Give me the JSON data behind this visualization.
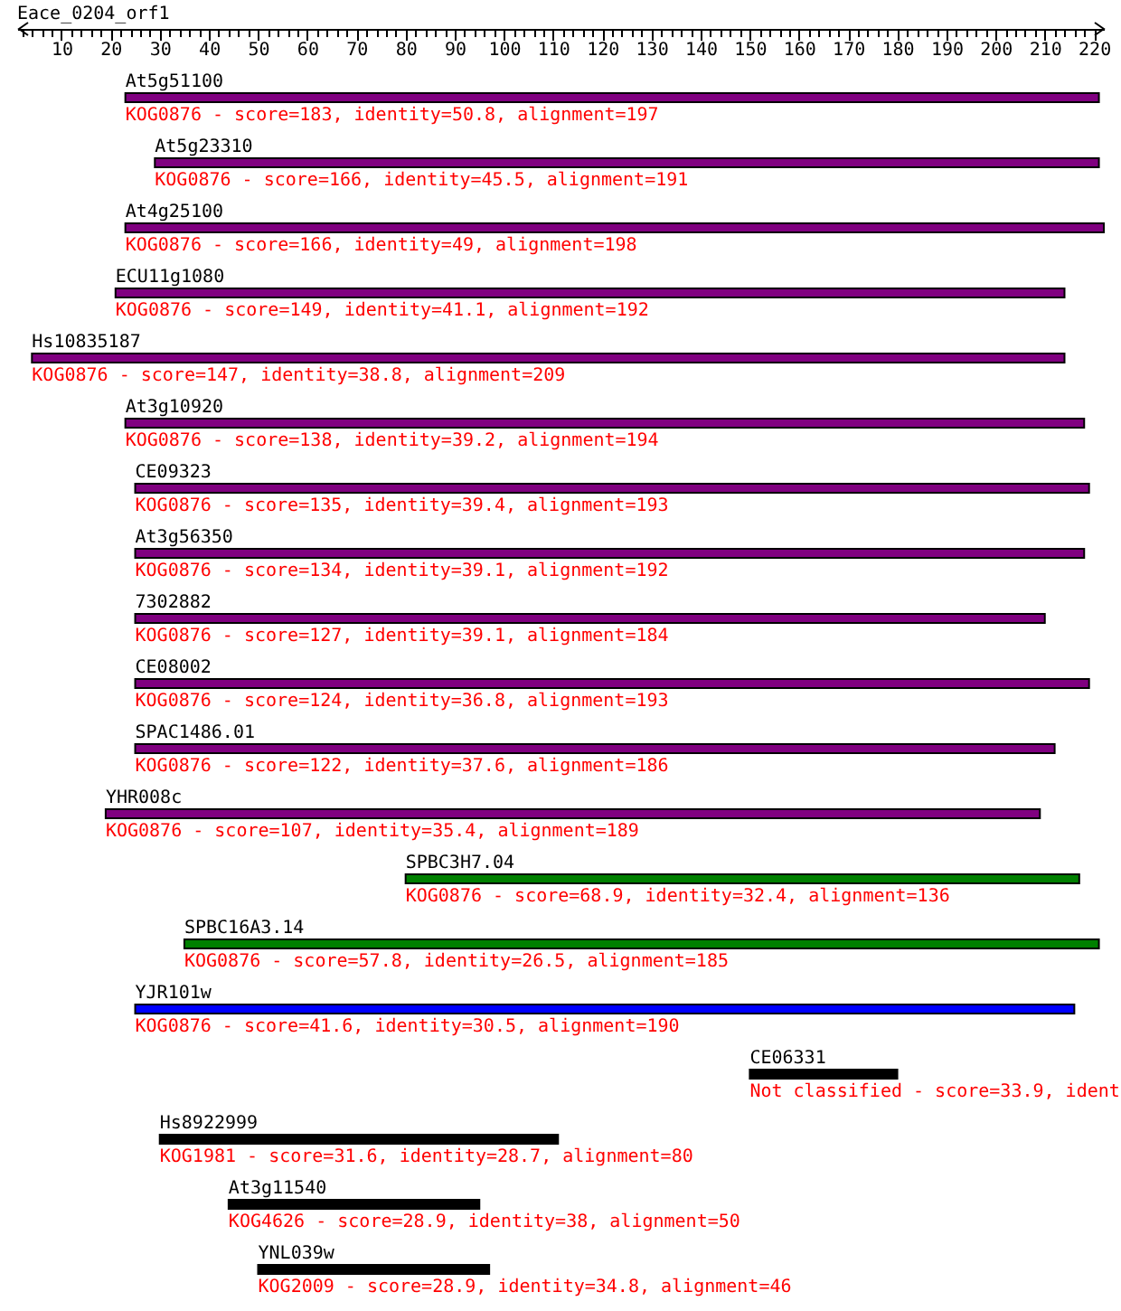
{
  "chart_data": {
    "type": "bar",
    "orientation": "horizontal",
    "title": "Eace_0204_orf1",
    "categories": [
      "At5g51100",
      "At5g23310",
      "At4g25100",
      "ECU11g1080",
      "Hs10835187",
      "At3g10920",
      "CE09323",
      "At3g56350",
      "7302882",
      "CE08002",
      "SPAC1486.01",
      "YHR008c",
      "SPBC3H7.04",
      "SPBC16A3.14",
      "YJR101w",
      "CE06331",
      "Hs8922999",
      "At3g11540",
      "YNL039w"
    ],
    "base": [
      23,
      29,
      23,
      21,
      4,
      23,
      25,
      25,
      25,
      25,
      25,
      19,
      80,
      35,
      25,
      150,
      30,
      44,
      50
    ],
    "values": [
      198,
      192,
      199,
      193,
      210,
      195,
      194,
      193,
      185,
      194,
      187,
      190,
      137,
      186,
      191,
      30,
      81,
      51,
      47
    ],
    "colors": [
      "#800080",
      "#800080",
      "#800080",
      "#800080",
      "#800080",
      "#800080",
      "#800080",
      "#800080",
      "#800080",
      "#800080",
      "#800080",
      "#800080",
      "#008000",
      "#008000",
      "#0000ff",
      "#000000",
      "#000000",
      "#000000",
      "#000000"
    ],
    "xlim": [
      1,
      222
    ],
    "xticks": [
      {
        "value": 2,
        "label": null
      },
      {
        "value": 4,
        "label": null
      },
      {
        "value": 6,
        "label": null
      },
      {
        "value": 8,
        "label": null
      },
      10,
      {
        "value": 12,
        "label": null
      },
      {
        "value": 14,
        "label": null
      },
      {
        "value": 16,
        "label": null
      },
      {
        "value": 18,
        "label": null
      },
      20,
      {
        "value": 22,
        "label": null
      },
      {
        "value": 24,
        "label": null
      },
      {
        "value": 26,
        "label": null
      },
      {
        "value": 28,
        "label": null
      },
      30,
      {
        "value": 32,
        "label": null
      },
      {
        "value": 34,
        "label": null
      },
      {
        "value": 36,
        "label": null
      },
      {
        "value": 38,
        "label": null
      },
      40,
      {
        "value": 42,
        "label": null
      },
      {
        "value": 44,
        "label": null
      },
      {
        "value": 46,
        "label": null
      },
      {
        "value": 48,
        "label": null
      },
      50,
      {
        "value": 52,
        "label": null
      },
      {
        "value": 54,
        "label": null
      },
      {
        "value": 56,
        "label": null
      },
      {
        "value": 58,
        "label": null
      },
      60,
      {
        "value": 62,
        "label": null
      },
      {
        "value": 64,
        "label": null
      },
      {
        "value": 66,
        "label": null
      },
      {
        "value": 68,
        "label": null
      },
      70,
      {
        "value": 72,
        "label": null
      },
      {
        "value": 74,
        "label": null
      },
      {
        "value": 76,
        "label": null
      },
      {
        "value": 78,
        "label": null
      },
      80,
      {
        "value": 82,
        "label": null
      },
      {
        "value": 84,
        "label": null
      },
      {
        "value": 86,
        "label": null
      },
      {
        "value": 88,
        "label": null
      },
      90,
      {
        "value": 92,
        "label": null
      },
      {
        "value": 94,
        "label": null
      },
      {
        "value": 96,
        "label": null
      },
      {
        "value": 98,
        "label": null
      },
      100,
      {
        "value": 102,
        "label": null
      },
      {
        "value": 104,
        "label": null
      },
      {
        "value": 106,
        "label": null
      },
      {
        "value": 108,
        "label": null
      },
      110,
      {
        "value": 112,
        "label": null
      },
      {
        "value": 114,
        "label": null
      },
      {
        "value": 116,
        "label": null
      },
      {
        "value": 118,
        "label": null
      },
      120,
      {
        "value": 122,
        "label": null
      },
      {
        "value": 124,
        "label": null
      },
      {
        "value": 126,
        "label": null
      },
      {
        "value": 128,
        "label": null
      },
      130,
      {
        "value": 132,
        "label": null
      },
      {
        "value": 134,
        "label": null
      },
      {
        "value": 136,
        "label": null
      },
      {
        "value": 138,
        "label": null
      },
      140,
      {
        "value": 142,
        "label": null
      },
      {
        "value": 144,
        "label": null
      },
      {
        "value": 146,
        "label": null
      },
      {
        "value": 148,
        "label": null
      },
      150,
      {
        "value": 152,
        "label": null
      },
      {
        "value": 154,
        "label": null
      },
      {
        "value": 156,
        "label": null
      },
      {
        "value": 158,
        "label": null
      },
      160,
      {
        "value": 162,
        "label": null
      },
      {
        "value": 164,
        "label": null
      },
      {
        "value": 166,
        "label": null
      },
      {
        "value": 168,
        "label": null
      },
      170,
      {
        "value": 172,
        "label": null
      },
      {
        "value": 174,
        "label": null
      },
      {
        "value": 176,
        "label": null
      },
      {
        "value": 178,
        "label": null
      },
      180,
      {
        "value": 182,
        "label": null
      },
      {
        "value": 184,
        "label": null
      },
      {
        "value": 186,
        "label": null
      },
      {
        "value": 188,
        "label": null
      },
      190,
      {
        "value": 192,
        "label": null
      },
      {
        "value": 194,
        "label": null
      },
      {
        "value": 196,
        "label": null
      },
      {
        "value": 198,
        "label": null
      },
      200,
      {
        "value": 202,
        "label": null
      },
      {
        "value": 204,
        "label": null
      },
      {
        "value": 206,
        "label": null
      },
      {
        "value": 208,
        "label": null
      },
      210,
      {
        "value": 212,
        "label": null
      },
      {
        "value": 214,
        "label": null
      },
      {
        "value": 216,
        "label": null
      },
      {
        "value": 218,
        "label": null
      },
      220
    ],
    "annotations": [
      "KOG0876 - score=183, identity=50.8, alignment=197",
      "KOG0876 - score=166, identity=45.5, alignment=191",
      "KOG0876 - score=166, identity=49, alignment=198",
      "KOG0876 - score=149, identity=41.1, alignment=192",
      "KOG0876 - score=147, identity=38.8, alignment=209",
      "KOG0876 - score=138, identity=39.2, alignment=194",
      "KOG0876 - score=135, identity=39.4, alignment=193",
      "KOG0876 - score=134, identity=39.1, alignment=192",
      "KOG0876 - score=127, identity=39.1, alignment=184",
      "KOG0876 - score=124, identity=36.8, alignment=193",
      "KOG0876 - score=122, identity=37.6, alignment=186",
      "KOG0876 - score=107, identity=35.4, alignment=189",
      "KOG0876 - score=68.9, identity=32.4, alignment=136",
      "KOG0876 - score=57.8, identity=26.5, alignment=185",
      "KOG0876 - score=41.6, identity=30.5, alignment=190",
      "Not classified - score=33.9, ident",
      "KOG1981 - score=31.6, identity=28.7, alignment=80",
      "KOG4626 - score=28.9, identity=38, alignment=50",
      "KOG2009 - score=28.9, identity=34.8, alignment=46"
    ]
  }
}
